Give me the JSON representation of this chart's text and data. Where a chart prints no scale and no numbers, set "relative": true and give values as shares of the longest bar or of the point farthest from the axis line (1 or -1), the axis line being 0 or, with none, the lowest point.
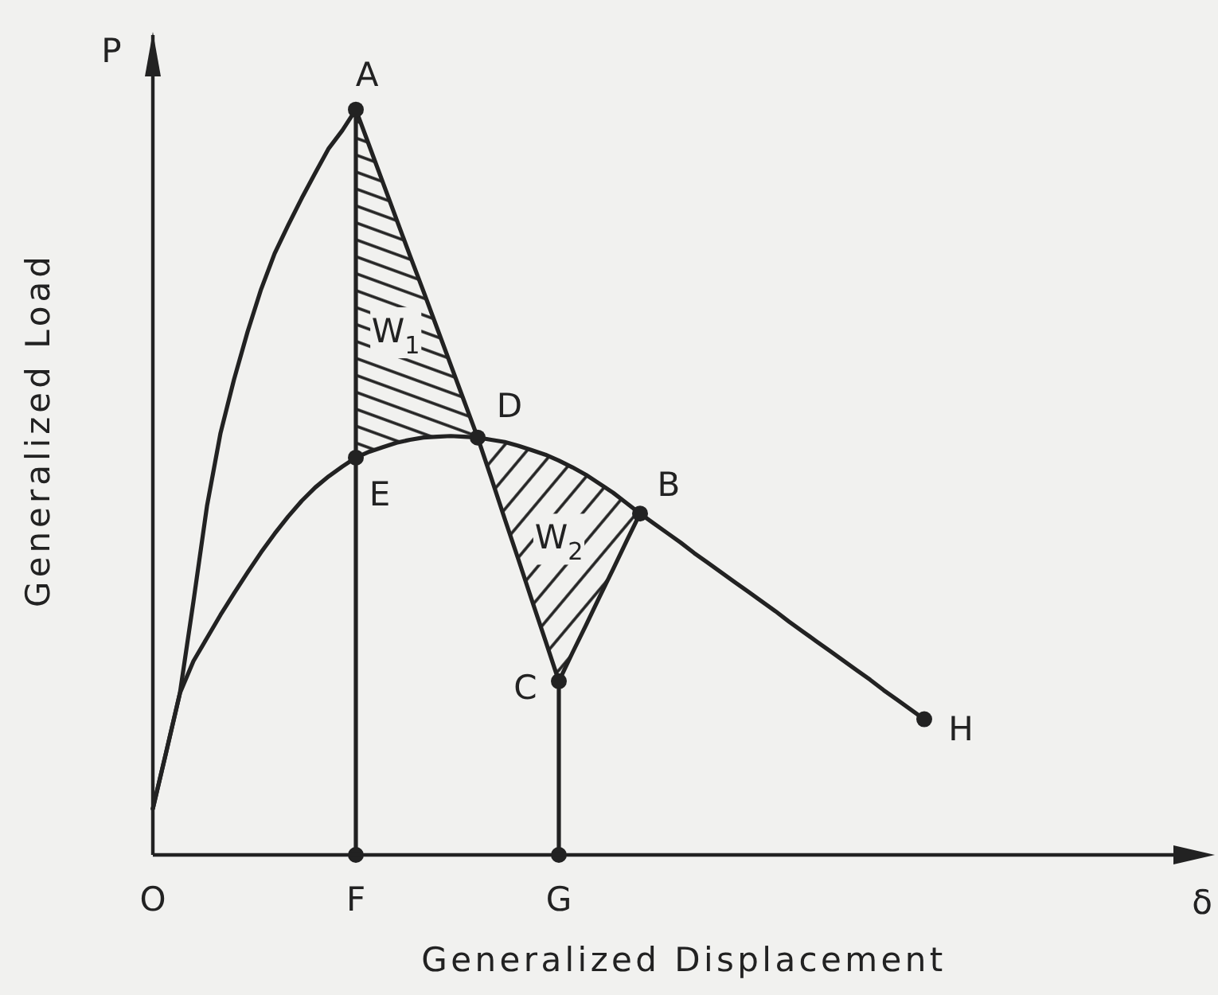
{
  "chart_data": {
    "type": "line",
    "relative": true,
    "xlabel": "Generalized Displacement",
    "ylabel": "Generalized Load",
    "categories": [
      "O",
      null,
      null,
      null,
      null,
      null,
      null,
      null,
      null,
      null,
      null,
      null,
      null,
      null,
      null,
      "F",
      null,
      null,
      null,
      null,
      null,
      null,
      null,
      null,
      null,
      null,
      null,
      null,
      null,
      null,
      "G",
      null,
      null,
      null,
      null,
      null,
      null,
      null,
      null,
      null,
      null,
      null,
      null,
      null,
      null,
      null,
      null,
      null,
      null,
      null,
      null,
      null,
      null,
      null,
      null,
      null,
      null,
      null
    ],
    "series": [
      {
        "color": "#222222",
        "values": [
          0.062,
          0.139,
          0.217,
          0.34,
          0.468,
          0.566,
          0.638,
          0.702,
          0.759,
          0.807,
          0.845,
          0.881,
          0.915,
          0.948,
          0.972,
          1,
          null,
          null,
          null,
          null,
          null,
          null,
          null,
          null,
          null,
          null,
          null,
          null,
          null,
          null,
          null,
          null,
          null,
          null,
          null,
          null,
          null,
          null,
          null,
          null,
          null,
          null,
          null,
          null,
          null,
          null,
          null,
          null,
          null,
          null,
          null,
          null,
          null,
          null,
          null,
          null,
          null,
          null
        ]
      },
      {
        "color": "#222222",
        "values": [
          0.062,
          0.139,
          0.217,
          0.26,
          0.291,
          0.322,
          0.351,
          0.379,
          0.406,
          0.431,
          0.454,
          0.475,
          0.493,
          0.508,
          0.521,
          0.533,
          0.541,
          0.547,
          0.553,
          0.557,
          0.56,
          0.561,
          0.562,
          0.561,
          0.56,
          0.557,
          0.554,
          0.549,
          0.543,
          0.537,
          0.529,
          0.52,
          0.51,
          0.498,
          0.486,
          0.472,
          0.458,
          0.445,
          0.432,
          0.419,
          0.405,
          0.392,
          0.379,
          0.366,
          0.353,
          0.34,
          0.327,
          0.313,
          0.3,
          0.287,
          0.274,
          0.261,
          0.248,
          0.235,
          0.221,
          0.208,
          0.195,
          0.182
        ]
      },
      {
        "color": "#222222",
        "values": [
          null,
          null,
          null,
          null,
          null,
          null,
          null,
          null,
          null,
          null,
          null,
          null,
          null,
          null,
          null,
          1,
          0.951,
          0.902,
          0.853,
          0.804,
          0.756,
          0.707,
          0.658,
          0.609,
          0.56,
          null,
          null,
          null,
          null,
          null,
          null,
          null,
          null,
          null,
          null,
          null,
          null,
          null,
          null,
          null,
          null,
          null,
          null,
          null,
          null,
          null,
          null,
          null,
          null,
          null,
          null,
          null,
          null,
          null,
          null,
          null,
          null,
          null
        ],
        "lower": [
          null,
          null,
          null,
          null,
          null,
          null,
          null,
          null,
          null,
          null,
          null,
          null,
          null,
          null,
          null,
          0.533,
          0.541,
          0.547,
          0.553,
          0.557,
          0.56,
          0.561,
          0.562,
          0.561,
          0.56,
          null,
          null,
          null,
          null,
          null,
          null,
          null,
          null,
          null,
          null,
          null,
          null,
          null,
          null,
          null,
          null,
          null,
          null,
          null,
          null,
          null,
          null,
          null,
          null,
          null,
          null,
          null,
          null,
          null,
          null,
          null,
          null,
          null
        ],
        "upper": [
          null,
          null,
          null,
          null,
          null,
          null,
          null,
          null,
          null,
          null,
          null,
          null,
          null,
          null,
          null,
          1,
          0.951,
          0.902,
          0.853,
          0.804,
          0.756,
          0.707,
          0.658,
          0.609,
          0.56,
          null,
          null,
          null,
          null,
          null,
          null,
          null,
          null,
          null,
          null,
          null,
          null,
          null,
          null,
          null,
          null,
          null,
          null,
          null,
          null,
          null,
          null,
          null,
          null,
          null,
          null,
          null,
          null,
          null,
          null,
          null,
          null,
          null
        ]
      },
      {
        "color": "#222222",
        "values": [
          null,
          null,
          null,
          null,
          null,
          null,
          null,
          null,
          null,
          null,
          null,
          null,
          null,
          null,
          null,
          null,
          null,
          null,
          null,
          null,
          null,
          null,
          null,
          null,
          0.56,
          0.506,
          0.451,
          0.397,
          0.342,
          0.288,
          0.233,
          0.271,
          0.308,
          0.346,
          0.383,
          0.421,
          0.458,
          null,
          null,
          null,
          null,
          null,
          null,
          null,
          null,
          null,
          null,
          null,
          null,
          null,
          null,
          null,
          null,
          null,
          null,
          null,
          null,
          null
        ],
        "lower": [
          null,
          null,
          null,
          null,
          null,
          null,
          null,
          null,
          null,
          null,
          null,
          null,
          null,
          null,
          null,
          null,
          null,
          null,
          null,
          null,
          null,
          null,
          null,
          null,
          0.56,
          0.506,
          0.451,
          0.397,
          0.342,
          0.288,
          0.233,
          0.271,
          0.308,
          0.346,
          0.383,
          0.421,
          0.458,
          null,
          null,
          null,
          null,
          null,
          null,
          null,
          null,
          null,
          null,
          null,
          null,
          null,
          null,
          null,
          null,
          null,
          null,
          null,
          null,
          null
        ],
        "upper": [
          null,
          null,
          null,
          null,
          null,
          null,
          null,
          null,
          null,
          null,
          null,
          null,
          null,
          null,
          null,
          null,
          null,
          null,
          null,
          null,
          null,
          null,
          null,
          null,
          0.56,
          0.557,
          0.554,
          0.549,
          0.543,
          0.537,
          0.529,
          0.52,
          0.51,
          0.498,
          0.486,
          0.472,
          0.458,
          null,
          null,
          null,
          null,
          null,
          null,
          null,
          null,
          null,
          null,
          null,
          null,
          null,
          null,
          null,
          null,
          null,
          null,
          null,
          null,
          null
        ]
      },
      {
        "type": "lollipop",
        "color": "#222222",
        "values": [
          null,
          null,
          null,
          null,
          null,
          null,
          null,
          null,
          null,
          null,
          null,
          null,
          null,
          null,
          null,
          1,
          null,
          null,
          null,
          null,
          null,
          null,
          null,
          null,
          null,
          null,
          null,
          null,
          null,
          null,
          0.233,
          null,
          null,
          null,
          null,
          null,
          null,
          null,
          null,
          null,
          null,
          null,
          null,
          null,
          null,
          null,
          null,
          null,
          null,
          null,
          null,
          null,
          null,
          null,
          null,
          null,
          null,
          null
        ]
      },
      {
        "type": "scatter",
        "color": "#222222",
        "marker": "circle",
        "values": [
          null,
          null,
          null,
          null,
          null,
          null,
          null,
          null,
          null,
          null,
          null,
          null,
          null,
          null,
          null,
          0.533,
          null,
          null,
          null,
          null,
          null,
          null,
          null,
          null,
          0.56,
          null,
          null,
          null,
          null,
          null,
          null,
          null,
          null,
          null,
          null,
          null,
          0.458,
          null,
          null,
          null,
          null,
          null,
          null,
          null,
          null,
          null,
          null,
          null,
          null,
          null,
          null,
          null,
          null,
          null,
          null,
          null,
          null,
          0.182
        ]
      },
      {
        "type": "scatter",
        "color": "#222222",
        "marker": "circle",
        "values": [
          null,
          null,
          null,
          null,
          null,
          null,
          null,
          null,
          null,
          null,
          null,
          null,
          null,
          null,
          null,
          0,
          null,
          null,
          null,
          null,
          null,
          null,
          null,
          null,
          null,
          null,
          null,
          null,
          null,
          null,
          0,
          null,
          null,
          null,
          null,
          null,
          null,
          null,
          null,
          null,
          null,
          null,
          null,
          null,
          null,
          null,
          null,
          null,
          null,
          null,
          null,
          null,
          null,
          null,
          null,
          null,
          null,
          null
        ]
      }
    ],
    "annotations": [
      "P",
      "δ",
      "W$_{1}$",
      "W$_{2}$",
      "A",
      "C",
      "E",
      "D",
      "B",
      "H"
    ]
  }
}
